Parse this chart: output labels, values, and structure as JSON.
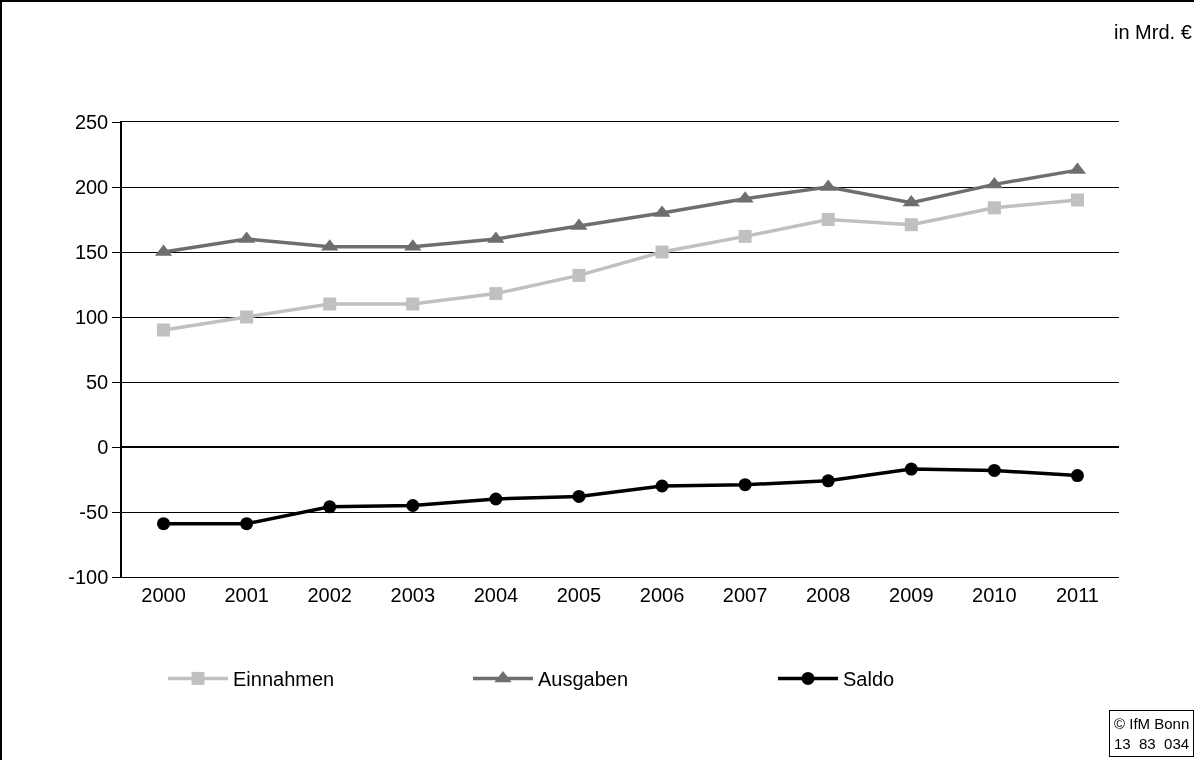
{
  "chart_data": {
    "type": "line",
    "categories": [
      "2000",
      "2001",
      "2002",
      "2003",
      "2004",
      "2005",
      "2006",
      "2007",
      "2008",
      "2009",
      "2010",
      "2011"
    ],
    "series": [
      {
        "name": "Einnahmen",
        "color": "#c0c0c0",
        "marker": "square",
        "values": [
          90,
          100,
          110,
          110,
          118,
          132,
          150,
          162,
          175,
          171,
          184,
          190
        ]
      },
      {
        "name": "Ausgaben",
        "color": "#6e6e6e",
        "marker": "triangle",
        "values": [
          150,
          160,
          154,
          154,
          160,
          170,
          180,
          191,
          200,
          188,
          202,
          213
        ]
      },
      {
        "name": "Saldo",
        "color": "#000000",
        "marker": "circle",
        "values": [
          -59,
          -59,
          -46,
          -45,
          -40,
          -38,
          -30,
          -29,
          -26,
          -17,
          -18,
          -22
        ]
      }
    ],
    "ylim": [
      -100,
      250
    ],
    "yticks": [
      -100,
      -50,
      0,
      50,
      100,
      150,
      200,
      250
    ],
    "grid": "y",
    "legend": "bottom",
    "line_style": "solid",
    "annotations": [
      "in Mrd. €",
      "© IfM Bonn\n13  83  034"
    ]
  }
}
